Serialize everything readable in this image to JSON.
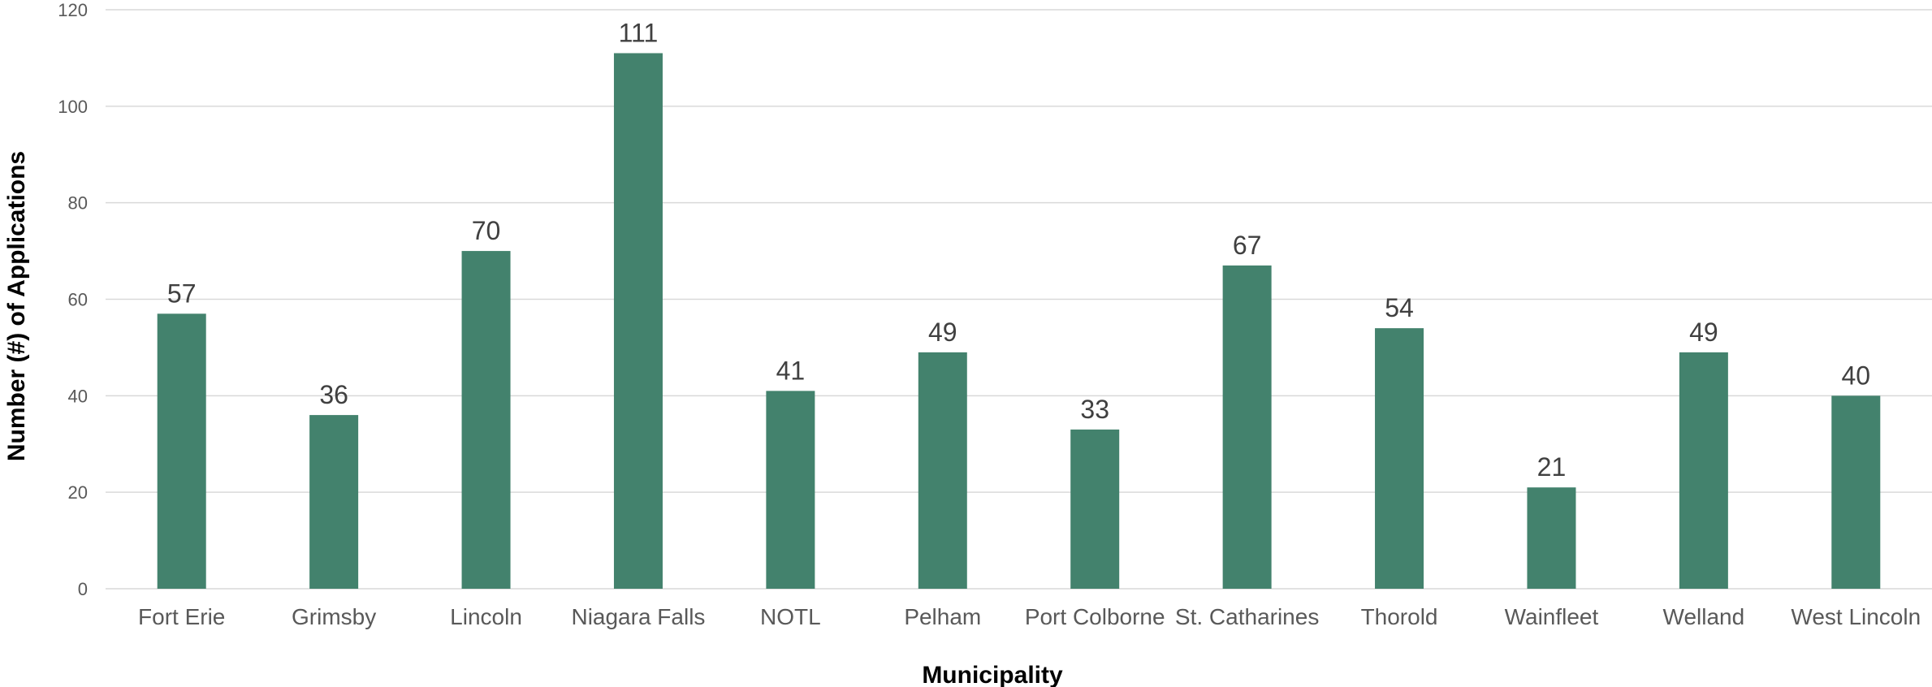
{
  "chart_data": {
    "type": "bar",
    "title": "",
    "xlabel": "Municipality",
    "ylabel": "Number (#) of Applications",
    "ylim": [
      0,
      120
    ],
    "yticks": [
      0,
      20,
      40,
      60,
      80,
      100,
      120
    ],
    "grid": true,
    "legend": "none",
    "categories": [
      "Fort Erie",
      "Grimsby",
      "Lincoln",
      "Niagara Falls",
      "NOTL",
      "Pelham",
      "Port Colborne",
      "St. Catharines",
      "Thorold",
      "Wainfleet",
      "Welland",
      "West Lincoln"
    ],
    "values": [
      57,
      36,
      70,
      111,
      41,
      49,
      33,
      67,
      54,
      21,
      49,
      40
    ],
    "colors": {
      "bar": "#43826D",
      "grid": "#D9D9D9"
    }
  }
}
